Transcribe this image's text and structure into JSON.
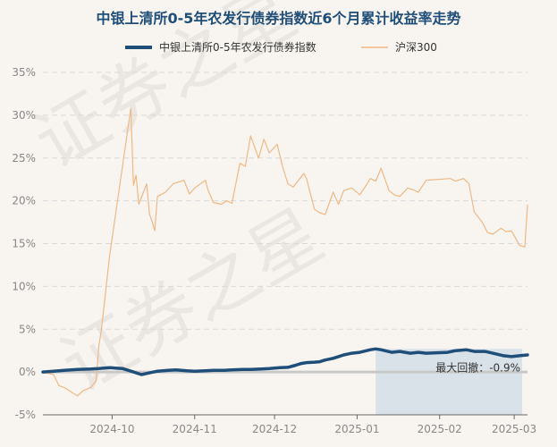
{
  "chart_data": {
    "type": "line",
    "title": "中银上清所0-5年农发行债券指数近6个月累计收益率走势",
    "xlabel": "",
    "ylabel": "",
    "ylim": [
      -5,
      35
    ],
    "y_ticks": [
      "35%",
      "30%",
      "25%",
      "20%",
      "15%",
      "10%",
      "5%",
      "0%",
      "-5%"
    ],
    "x_ticks": [
      "2024-10",
      "2024-11",
      "2024-12",
      "2025-01",
      "2025-02",
      "2025-03"
    ],
    "x_range": [
      "2024-09-05",
      "2025-03-06"
    ],
    "grid": true,
    "legend_position": "top",
    "series": [
      {
        "name": "中银上清所0-5年农发行债券指数",
        "color": "#1f4e79",
        "points": [
          [
            "2024-09-05",
            0.0
          ],
          [
            "2024-09-09",
            0.1
          ],
          [
            "2024-09-13",
            0.2
          ],
          [
            "2024-09-18",
            0.3
          ],
          [
            "2024-09-23",
            0.35
          ],
          [
            "2024-09-26",
            0.4
          ],
          [
            "2024-09-30",
            0.5
          ],
          [
            "2024-10-05",
            0.4
          ],
          [
            "2024-10-09",
            0.0
          ],
          [
            "2024-10-12",
            -0.3
          ],
          [
            "2024-10-15",
            -0.1
          ],
          [
            "2024-10-18",
            0.1
          ],
          [
            "2024-10-22",
            0.2
          ],
          [
            "2024-10-25",
            0.25
          ],
          [
            "2024-10-29",
            0.15
          ],
          [
            "2024-11-01",
            0.1
          ],
          [
            "2024-11-05",
            0.15
          ],
          [
            "2024-11-08",
            0.2
          ],
          [
            "2024-11-12",
            0.2
          ],
          [
            "2024-11-15",
            0.25
          ],
          [
            "2024-11-19",
            0.3
          ],
          [
            "2024-11-22",
            0.3
          ],
          [
            "2024-11-26",
            0.35
          ],
          [
            "2024-11-29",
            0.4
          ],
          [
            "2024-12-03",
            0.5
          ],
          [
            "2024-12-06",
            0.55
          ],
          [
            "2024-12-09",
            0.8
          ],
          [
            "2024-12-11",
            1.0
          ],
          [
            "2024-12-13",
            1.1
          ],
          [
            "2024-12-16",
            1.15
          ],
          [
            "2024-12-18",
            1.2
          ],
          [
            "2024-12-20",
            1.4
          ],
          [
            "2024-12-23",
            1.6
          ],
          [
            "2024-12-25",
            1.8
          ],
          [
            "2024-12-27",
            2.0
          ],
          [
            "2024-12-30",
            2.2
          ],
          [
            "2025-01-02",
            2.3
          ],
          [
            "2025-01-06",
            2.6
          ],
          [
            "2025-01-08",
            2.7
          ],
          [
            "2025-01-10",
            2.6
          ],
          [
            "2025-01-14",
            2.3
          ],
          [
            "2025-01-17",
            2.4
          ],
          [
            "2025-01-21",
            2.2
          ],
          [
            "2025-01-24",
            2.3
          ],
          [
            "2025-01-27",
            2.2
          ],
          [
            "2025-02-04",
            2.3
          ],
          [
            "2025-02-07",
            2.5
          ],
          [
            "2025-02-11",
            2.6
          ],
          [
            "2025-02-14",
            2.4
          ],
          [
            "2025-02-18",
            2.4
          ],
          [
            "2025-02-21",
            2.2
          ],
          [
            "2025-02-25",
            1.9
          ],
          [
            "2025-02-28",
            1.8
          ],
          [
            "2025-03-03",
            1.9
          ],
          [
            "2025-03-06",
            2.0
          ]
        ]
      },
      {
        "name": "沪深300",
        "color": "#f0b884",
        "points": [
          [
            "2024-09-05",
            0.0
          ],
          [
            "2024-09-09",
            -0.3
          ],
          [
            "2024-09-11",
            -1.6
          ],
          [
            "2024-09-13",
            -1.8
          ],
          [
            "2024-09-18",
            -2.8
          ],
          [
            "2024-09-20",
            -2.2
          ],
          [
            "2024-09-23",
            -1.8
          ],
          [
            "2024-09-25",
            -1.0
          ],
          [
            "2024-09-26",
            3.0
          ],
          [
            "2024-09-27",
            5.0
          ],
          [
            "2024-09-30",
            13.5
          ],
          [
            "2024-10-08",
            30.8
          ],
          [
            "2024-10-09",
            21.8
          ],
          [
            "2024-10-10",
            23.0
          ],
          [
            "2024-10-11",
            19.6
          ],
          [
            "2024-10-14",
            22.0
          ],
          [
            "2024-10-15",
            18.5
          ],
          [
            "2024-10-16",
            17.6
          ],
          [
            "2024-10-17",
            16.5
          ],
          [
            "2024-10-18",
            20.5
          ],
          [
            "2024-10-21",
            21.0
          ],
          [
            "2024-10-24",
            22.0
          ],
          [
            "2024-10-28",
            22.4
          ],
          [
            "2024-10-30",
            20.8
          ],
          [
            "2024-11-01",
            21.5
          ],
          [
            "2024-11-05",
            22.4
          ],
          [
            "2024-11-06",
            21.3
          ],
          [
            "2024-11-08",
            19.8
          ],
          [
            "2024-11-11",
            19.6
          ],
          [
            "2024-11-13",
            20.0
          ],
          [
            "2024-11-15",
            19.7
          ],
          [
            "2024-11-18",
            24.4
          ],
          [
            "2024-11-20",
            24.0
          ],
          [
            "2024-11-22",
            27.6
          ],
          [
            "2024-11-25",
            25.0
          ],
          [
            "2024-11-27",
            27.2
          ],
          [
            "2024-11-29",
            25.6
          ],
          [
            "2024-12-02",
            26.6
          ],
          [
            "2024-12-04",
            24.0
          ],
          [
            "2024-12-06",
            22.0
          ],
          [
            "2024-12-08",
            21.6
          ],
          [
            "2024-12-10",
            22.4
          ],
          [
            "2024-12-12",
            23.2
          ],
          [
            "2024-12-13",
            22.6
          ],
          [
            "2024-12-16",
            19.0
          ],
          [
            "2024-12-18",
            18.6
          ],
          [
            "2024-12-20",
            18.4
          ],
          [
            "2024-12-23",
            21.0
          ],
          [
            "2024-12-25",
            19.6
          ],
          [
            "2024-12-27",
            21.2
          ],
          [
            "2024-12-30",
            21.5
          ],
          [
            "2025-01-02",
            20.7
          ],
          [
            "2025-01-04",
            21.6
          ],
          [
            "2025-01-06",
            22.6
          ],
          [
            "2025-01-08",
            22.3
          ],
          [
            "2025-01-10",
            23.8
          ],
          [
            "2025-01-13",
            21.2
          ],
          [
            "2025-01-15",
            20.7
          ],
          [
            "2025-01-17",
            20.5
          ],
          [
            "2025-01-20",
            21.5
          ],
          [
            "2025-01-22",
            21.3
          ],
          [
            "2025-01-24",
            21.0
          ],
          [
            "2025-01-27",
            22.4
          ],
          [
            "2025-02-05",
            22.6
          ],
          [
            "2025-02-07",
            22.3
          ],
          [
            "2025-02-10",
            22.6
          ],
          [
            "2025-02-12",
            22.0
          ],
          [
            "2025-02-14",
            18.7
          ],
          [
            "2025-02-17",
            17.5
          ],
          [
            "2025-02-19",
            16.3
          ],
          [
            "2025-02-21",
            16.1
          ],
          [
            "2025-02-24",
            16.8
          ],
          [
            "2025-02-26",
            16.4
          ],
          [
            "2025-02-28",
            16.5
          ],
          [
            "2025-03-03",
            14.8
          ],
          [
            "2025-03-05",
            14.6
          ],
          [
            "2025-03-06",
            19.5
          ]
        ]
      }
    ],
    "annotations": [
      {
        "text": "最大回撤：-0.9%",
        "shaded_range": [
          "2025-01-08",
          "2025-03-04"
        ]
      }
    ]
  }
}
